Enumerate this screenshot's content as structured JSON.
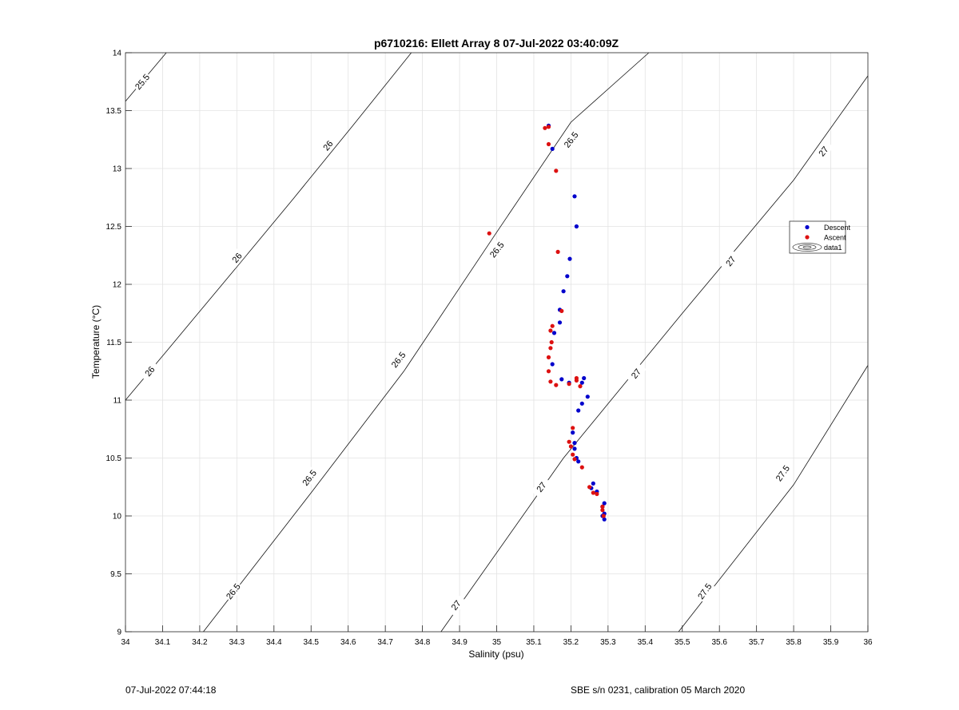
{
  "chart_data": {
    "type": "scatter",
    "title": "p6710216: Ellett Array 8 07-Jul-2022 03:40:09Z",
    "xlabel": "Salinity (psu)",
    "ylabel": "Temperature (°C)",
    "xlim": [
      34,
      36
    ],
    "ylim": [
      9,
      14
    ],
    "xticks": [
      "34",
      "34.1",
      "34.2",
      "34.3",
      "34.4",
      "34.5",
      "34.6",
      "34.7",
      "34.8",
      "34.9",
      "35",
      "35.1",
      "35.2",
      "35.3",
      "35.4",
      "35.5",
      "35.6",
      "35.7",
      "35.8",
      "35.9",
      "36"
    ],
    "yticks": [
      "9",
      "9.5",
      "10",
      "10.5",
      "11",
      "11.5",
      "12",
      "12.5",
      "13",
      "13.5",
      "14"
    ],
    "grid": true,
    "legend": {
      "placement": "right",
      "entries": [
        "Descent",
        "Ascent",
        "data1"
      ]
    },
    "contours": [
      {
        "level": "25.5",
        "points": [
          [
            34.0,
            13.58
          ],
          [
            34.11,
            14.0
          ]
        ],
        "labels": [
          [
            34.045,
            13.75
          ]
        ]
      },
      {
        "level": "26",
        "points": [
          [
            34.0,
            11.0
          ],
          [
            34.11,
            11.42
          ],
          [
            34.3,
            12.15
          ],
          [
            34.45,
            12.73
          ],
          [
            34.61,
            13.36
          ],
          [
            34.77,
            14.0
          ]
        ],
        "labels": [
          [
            34.065,
            11.25
          ],
          [
            34.3,
            12.23
          ],
          [
            34.545,
            13.2
          ]
        ]
      },
      {
        "level": "26.5",
        "points": [
          [
            34.21,
            9.0
          ],
          [
            34.5,
            10.2
          ],
          [
            34.75,
            11.25
          ],
          [
            35.0,
            12.45
          ],
          [
            35.2,
            13.4
          ],
          [
            35.41,
            14.0
          ]
        ],
        "labels": [
          [
            34.29,
            9.35
          ],
          [
            34.495,
            10.33
          ],
          [
            34.735,
            11.35
          ],
          [
            35.0,
            12.3
          ],
          [
            35.2,
            13.25
          ]
        ]
      },
      {
        "level": "27",
        "points": [
          [
            34.85,
            9.0
          ],
          [
            35.18,
            10.5
          ],
          [
            35.5,
            11.75
          ],
          [
            35.8,
            12.9
          ],
          [
            36.0,
            13.8
          ]
        ],
        "labels": [
          [
            34.89,
            9.23
          ],
          [
            35.12,
            10.25
          ],
          [
            35.375,
            11.23
          ],
          [
            35.63,
            12.2
          ],
          [
            35.88,
            13.15
          ]
        ]
      },
      {
        "level": "27.5",
        "points": [
          [
            35.49,
            9.0
          ],
          [
            35.8,
            10.27
          ],
          [
            36.0,
            11.3
          ]
        ],
        "labels": [
          [
            35.56,
            9.35
          ],
          [
            35.77,
            10.37
          ]
        ]
      }
    ],
    "series": [
      {
        "name": "Descent",
        "color": "#0000cc",
        "x": [
          35.14,
          35.15,
          35.21,
          35.215,
          35.197,
          35.19,
          35.18,
          35.17,
          35.17,
          35.155,
          35.15,
          35.175,
          35.195,
          35.235,
          35.23,
          35.245,
          35.22,
          35.23,
          35.205,
          35.21,
          35.21,
          35.215,
          35.22,
          35.26,
          35.255,
          35.27,
          35.29,
          35.285,
          35.29,
          35.285,
          35.29
        ],
        "y": [
          13.37,
          13.17,
          12.76,
          12.5,
          12.22,
          12.07,
          11.94,
          11.78,
          11.67,
          11.58,
          11.31,
          11.18,
          11.15,
          11.19,
          11.15,
          11.03,
          10.91,
          10.97,
          10.72,
          10.63,
          10.58,
          10.5,
          10.47,
          10.28,
          10.24,
          10.21,
          10.11,
          10.08,
          10.02,
          10.0,
          9.97
        ]
      },
      {
        "name": "Ascent",
        "color": "#dd1111",
        "x": [
          35.13,
          35.14,
          35.14,
          35.16,
          34.98,
          35.165,
          35.175,
          35.15,
          35.145,
          35.148,
          35.145,
          35.14,
          35.14,
          35.145,
          35.16,
          35.195,
          35.215,
          35.215,
          35.225,
          35.205,
          35.195,
          35.2,
          35.205,
          35.21,
          35.23,
          35.25,
          35.26,
          35.27,
          35.285,
          35.285,
          35.288
        ],
        "y": [
          13.35,
          13.36,
          13.21,
          12.98,
          12.44,
          12.28,
          11.77,
          11.64,
          11.6,
          11.5,
          11.45,
          11.37,
          11.25,
          11.16,
          11.13,
          11.14,
          11.19,
          11.17,
          11.12,
          10.76,
          10.64,
          10.6,
          10.53,
          10.49,
          10.42,
          10.25,
          10.2,
          10.19,
          10.08,
          10.05,
          10.0
        ]
      }
    ]
  },
  "footer": {
    "timestamp": "07-Jul-2022 07:44:18",
    "instrument": "SBE s/n 0231, calibration 05 March 2020"
  }
}
